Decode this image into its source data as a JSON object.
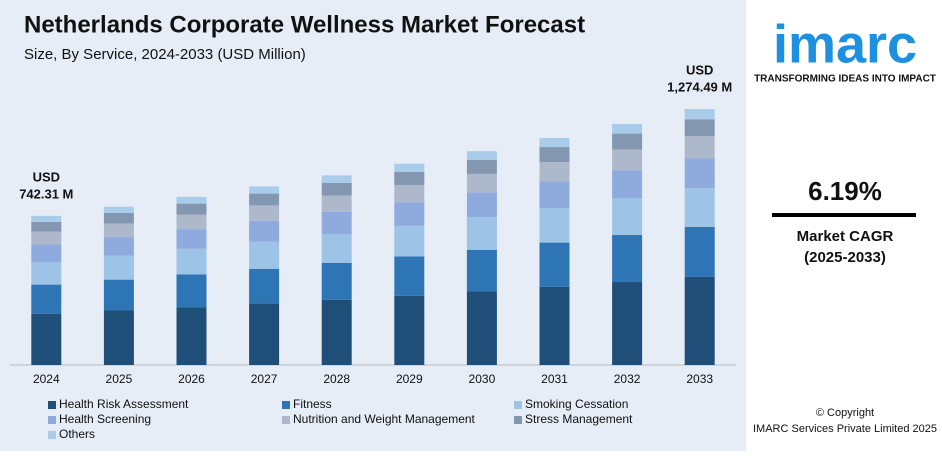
{
  "chart_data": {
    "type": "stacked_bar",
    "title": "Netherlands Corporate Wellness Market Forecast",
    "subtitle": "Size, By Service, 2024-2033 (USD Million)",
    "categories": [
      "2024",
      "2025",
      "2026",
      "2027",
      "2028",
      "2029",
      "2030",
      "2031",
      "2032",
      "2033"
    ],
    "series": [
      {
        "name": "Health Risk Assessment",
        "color": "#1f4e79",
        "values": [
          255.4,
          271.2,
          288.0,
          305.8,
          324.8,
          344.9,
          366.2,
          388.9,
          413.0,
          438.5
        ]
      },
      {
        "name": "Fitness",
        "color": "#2e75b6",
        "values": [
          144.8,
          153.8,
          163.3,
          173.4,
          184.1,
          195.5,
          207.6,
          220.5,
          234.1,
          248.7
        ]
      },
      {
        "name": "Smoking Cessation",
        "color": "#9dc3e6",
        "values": [
          112.8,
          119.8,
          127.2,
          135.1,
          143.4,
          152.3,
          161.7,
          171.8,
          182.4,
          193.7
        ]
      },
      {
        "name": "Health Screening",
        "color": "#8faadc",
        "values": [
          86.8,
          92.2,
          97.9,
          103.9,
          110.4,
          117.2,
          124.5,
          132.2,
          140.3,
          149.0
        ]
      },
      {
        "name": "Nutrition and Weight Management",
        "color": "#adb9ca",
        "values": [
          63.8,
          67.7,
          71.9,
          76.4,
          81.1,
          86.1,
          91.5,
          97.1,
          103.2,
          109.5
        ]
      },
      {
        "name": "Stress Management",
        "color": "#8497b0",
        "values": [
          49.0,
          52.0,
          55.3,
          58.7,
          62.3,
          66.2,
          70.3,
          74.6,
          79.2,
          84.1
        ]
      },
      {
        "name": "Others",
        "color": "#a9cceb",
        "values": [
          29.7,
          31.5,
          33.5,
          35.6,
          37.8,
          40.1,
          42.6,
          45.2,
          48.0,
          51.0
        ]
      }
    ],
    "annotations": [
      "USD",
      "742.31 M",
      "USD",
      "1,274.49 M"
    ]
  },
  "sidebar": {
    "logo": "imarc",
    "tagline": "TRANSFORMING IDEAS INTO IMPACT",
    "cagr": "6.19%",
    "cagr_label": "Market CAGR",
    "cagr_period": "(2025-2033)",
    "copyright": "© Copyright",
    "company": "IMARC Services Private Limited 2025"
  }
}
